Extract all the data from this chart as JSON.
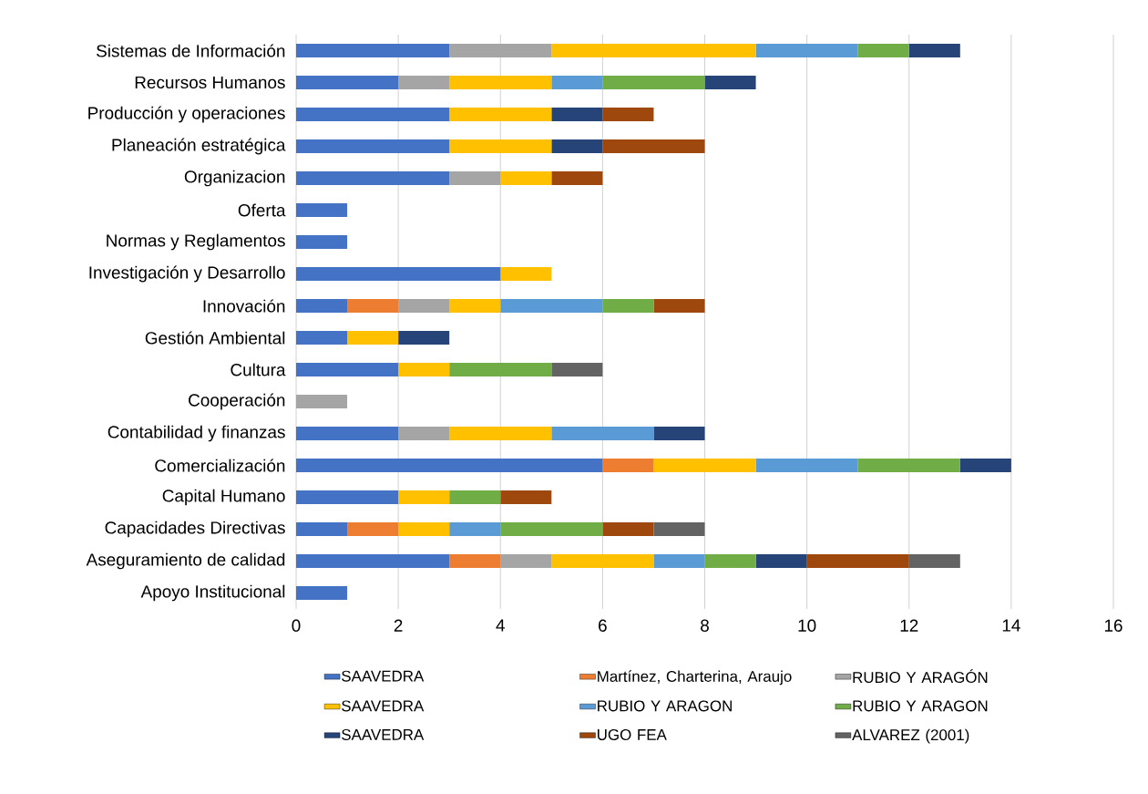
{
  "chart_data": {
    "type": "bar",
    "orientation": "horizontal",
    "stacked": true,
    "categories": [
      "Sistemas de Información",
      "Recursos Humanos",
      "Producción y operaciones",
      "Planeación estratégica",
      "Organizacion",
      "Oferta",
      "Normas y Reglamentos",
      "Investigación y Desarrollo",
      "Innovación",
      "Gestión Ambiental",
      "Cultura",
      "Cooperación",
      "Contabilidad y finanzas",
      "Comercialización",
      "Capital Humano",
      "Capacidades Directivas",
      "Aseguramiento de calidad",
      "Apoyo Institucional"
    ],
    "series": [
      {
        "name": "SAAVEDRA",
        "color": "#4472c4",
        "values": [
          3,
          2,
          3,
          3,
          3,
          1,
          1,
          4,
          1,
          1,
          2,
          0,
          2,
          6,
          2,
          1,
          3,
          1
        ]
      },
      {
        "name": "Martínez, Charterina, Araujo",
        "color": "#ed7d31",
        "values": [
          0,
          0,
          0,
          0,
          0,
          0,
          0,
          0,
          1,
          0,
          0,
          0,
          0,
          1,
          0,
          1,
          1,
          0
        ]
      },
      {
        "name": "RUBIO Y ARAGÓN",
        "color": "#a5a5a5",
        "values": [
          2,
          1,
          0,
          0,
          1,
          0,
          0,
          0,
          1,
          0,
          0,
          1,
          1,
          0,
          0,
          0,
          1,
          0
        ]
      },
      {
        "name": "SAAVEDRA",
        "color": "#ffc000",
        "values": [
          4,
          2,
          2,
          2,
          1,
          0,
          0,
          1,
          1,
          1,
          1,
          0,
          2,
          2,
          1,
          1,
          2,
          0
        ]
      },
      {
        "name": "RUBIO Y ARAGON",
        "color": "#5b9bd5",
        "values": [
          2,
          1,
          0,
          0,
          0,
          0,
          0,
          0,
          2,
          0,
          0,
          0,
          2,
          2,
          0,
          1,
          1,
          0
        ]
      },
      {
        "name": "RUBIO Y ARAGON",
        "color": "#70ad47",
        "values": [
          1,
          2,
          0,
          0,
          0,
          0,
          0,
          0,
          1,
          0,
          2,
          0,
          0,
          2,
          1,
          2,
          1,
          0
        ]
      },
      {
        "name": "SAAVEDRA",
        "color": "#264478",
        "values": [
          1,
          1,
          1,
          1,
          0,
          0,
          0,
          0,
          0,
          1,
          0,
          0,
          1,
          1,
          0,
          0,
          1,
          0
        ]
      },
      {
        "name": "UGO FEA",
        "color": "#9e480e",
        "values": [
          0,
          0,
          1,
          2,
          1,
          0,
          0,
          0,
          1,
          0,
          0,
          0,
          0,
          0,
          1,
          1,
          2,
          0
        ]
      },
      {
        "name": "ALVAREZ (2001)",
        "color": "#636363",
        "values": [
          0,
          0,
          0,
          0,
          0,
          0,
          0,
          0,
          0,
          0,
          1,
          0,
          0,
          0,
          0,
          1,
          1,
          0
        ]
      }
    ],
    "xlim": [
      0,
      16
    ],
    "xticks": [
      0,
      2,
      4,
      6,
      8,
      10,
      12,
      14,
      16
    ],
    "grid": "x",
    "legend": "bottom"
  }
}
